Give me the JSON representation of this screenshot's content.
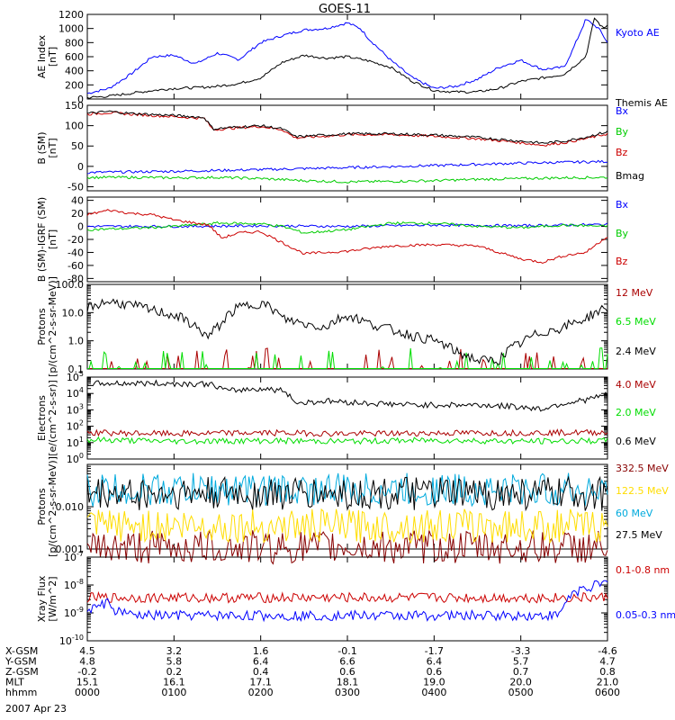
{
  "chart_data": {
    "type": "line",
    "title": "GOES-11",
    "date": "2007 Apr 23",
    "time_axis": {
      "rows": [
        {
          "label": "X-GSM",
          "values": [
            "4.5",
            "3.2",
            "1.6",
            "-0.1",
            "-1.7",
            "-3.3",
            "-4.6"
          ]
        },
        {
          "label": "Y-GSM",
          "values": [
            "4.8",
            "5.8",
            "6.4",
            "6.6",
            "6.4",
            "5.7",
            "4.7"
          ]
        },
        {
          "label": "Z-GSM",
          "values": [
            "-0.2",
            "0.2",
            "0.4",
            "0.6",
            "0.6",
            "0.7",
            "0.8"
          ]
        },
        {
          "label": "MLT",
          "values": [
            "15.1",
            "16.1",
            "17.1",
            "18.1",
            "19.0",
            "20.0",
            "21.0"
          ]
        },
        {
          "label": "hhmm",
          "values": [
            "0000",
            "0100",
            "0200",
            "0300",
            "0400",
            "0500",
            "0600"
          ]
        }
      ],
      "range_hours": [
        0,
        6
      ]
    },
    "panels": [
      {
        "ylabel": [
          "AE Index",
          "[nT]"
        ],
        "scale": "linear",
        "ylim": [
          0,
          1200
        ],
        "ticks": [
          0,
          200,
          400,
          600,
          800,
          1000,
          1200
        ],
        "tick_labels": [
          "0",
          "200",
          "400",
          "600",
          "800",
          "1000",
          "1200"
        ],
        "series": [
          {
            "name": "Kyoto AE",
            "color": "#0000ff",
            "x": [
              0,
              0.25,
              0.5,
              0.75,
              1.0,
              1.25,
              1.5,
              1.75,
              2.0,
              2.25,
              2.5,
              2.75,
              3.0,
              3.15,
              3.25,
              3.5,
              3.75,
              4.0,
              4.25,
              4.5,
              4.75,
              5.0,
              5.25,
              5.5,
              5.6,
              5.75,
              5.9,
              6.0
            ],
            "y": [
              80,
              150,
              350,
              600,
              620,
              500,
              650,
              560,
              800,
              900,
              980,
              1000,
              1080,
              1000,
              850,
              550,
              300,
              150,
              180,
              280,
              450,
              550,
              420,
              450,
              700,
              1130,
              1000,
              800
            ]
          },
          {
            "name": "Themis AE",
            "color": "#000000",
            "x": [
              0,
              0.25,
              0.5,
              0.75,
              1.0,
              1.25,
              1.5,
              1.75,
              2.0,
              2.25,
              2.5,
              2.75,
              3.0,
              3.25,
              3.5,
              3.75,
              4.0,
              4.25,
              4.5,
              4.75,
              5.0,
              5.25,
              5.5,
              5.75,
              5.85,
              5.95,
              6.0
            ],
            "y": [
              20,
              40,
              80,
              120,
              150,
              160,
              180,
              220,
              300,
              520,
              620,
              580,
              600,
              540,
              450,
              250,
              120,
              100,
              100,
              150,
              250,
              300,
              350,
              600,
              1150,
              1000,
              1050
            ]
          }
        ]
      },
      {
        "ylabel": [
          "B (SM)",
          "[nT]"
        ],
        "scale": "linear",
        "ylim": [
          -60,
          150
        ],
        "ticks": [
          -50,
          0,
          50,
          100,
          150
        ],
        "tick_labels": [
          "-50",
          "0",
          "50",
          "100",
          "150"
        ],
        "series": [
          {
            "name": "Bx",
            "color": "#0000ff",
            "x": [
              0,
              1,
              2,
              3,
              4,
              5,
              6
            ],
            "y": [
              -15,
              -12,
              -8,
              -3,
              2,
              8,
              12
            ]
          },
          {
            "name": "By",
            "color": "#00cc00",
            "x": [
              0,
              0.5,
              1,
              1.5,
              2,
              2.5,
              3,
              3.5,
              4,
              4.5,
              5,
              5.5,
              6
            ],
            "y": [
              -27,
              -27,
              -28,
              -27,
              -30,
              -35,
              -38,
              -37,
              -35,
              -32,
              -30,
              -28,
              -27
            ]
          },
          {
            "name": "Bz",
            "color": "#cc0000",
            "x": [
              0,
              0.25,
              0.5,
              1.0,
              1.35,
              1.45,
              1.75,
              2.0,
              2.25,
              2.4,
              2.75,
              3.0,
              3.5,
              4.0,
              4.5,
              5.0,
              5.25,
              5.5,
              5.75,
              6.0
            ],
            "y": [
              128,
              132,
              128,
              122,
              118,
              90,
              95,
              98,
              90,
              70,
              74,
              78,
              78,
              74,
              68,
              58,
              52,
              58,
              68,
              80
            ]
          },
          {
            "name": "Bmag",
            "color": "#000000",
            "x": [
              0,
              0.25,
              0.5,
              1.0,
              1.35,
              1.45,
              1.75,
              2.0,
              2.25,
              2.4,
              2.75,
              3.0,
              3.5,
              4.0,
              4.5,
              5.0,
              5.25,
              5.5,
              5.75,
              6.0
            ],
            "y": [
              130,
              135,
              130,
              125,
              120,
              92,
              97,
              100,
              92,
              73,
              77,
              80,
              80,
              77,
              71,
              62,
              57,
              62,
              72,
              85
            ]
          }
        ]
      },
      {
        "ylabel": [
          "B (SM)-IGRF (SM)",
          "[nT]"
        ],
        "scale": "linear",
        "ylim": [
          -85,
          45
        ],
        "ticks": [
          -80,
          -60,
          -40,
          -20,
          0,
          20,
          40
        ],
        "tick_labels": [
          "-80",
          "-60",
          "-40",
          "-20",
          "0",
          "20",
          "40"
        ],
        "series": [
          {
            "name": "Bx",
            "color": "#0000ff",
            "x": [
              0,
              1,
              2,
              3,
              4,
              5,
              6
            ],
            "y": [
              0,
              0,
              1,
              0,
              2,
              1,
              3
            ]
          },
          {
            "name": "By",
            "color": "#00cc00",
            "x": [
              0,
              0.5,
              1,
              1.5,
              2,
              2.25,
              2.5,
              3,
              3.5,
              4,
              4.5,
              5,
              5.5,
              6
            ],
            "y": [
              -5,
              -3,
              0,
              5,
              4,
              0,
              -10,
              -5,
              5,
              5,
              0,
              -2,
              2,
              0
            ]
          },
          {
            "name": "Bz",
            "color": "#cc0000",
            "x": [
              0,
              0.25,
              0.5,
              0.75,
              1.0,
              1.4,
              1.55,
              1.75,
              2.0,
              2.25,
              2.5,
              2.75,
              3.0,
              3.5,
              4.0,
              4.5,
              5.0,
              5.25,
              5.5,
              5.75,
              6.0
            ],
            "y": [
              18,
              25,
              20,
              18,
              10,
              2,
              -18,
              -10,
              -8,
              -25,
              -42,
              -40,
              -38,
              -30,
              -28,
              -30,
              -50,
              -55,
              -45,
              -40,
              -15
            ]
          }
        ]
      },
      {
        "ylabel": [
          "Protons",
          "[p/(cm^2-s-sr-MeV)]"
        ],
        "scale": "log",
        "ylim_exp": [
          -1,
          2
        ],
        "tick_labels": [
          "0.1",
          "1.0",
          "10.0",
          "100.0"
        ],
        "series": [
          {
            "name": "12 MeV",
            "color": "#aa0000",
            "x": [],
            "y": []
          },
          {
            "name": "6.5 MeV",
            "color": "#00dd00",
            "x": [],
            "y": []
          },
          {
            "name": "2.4 MeV",
            "color": "#000000",
            "x": [
              0,
              0.25,
              0.5,
              0.75,
              1.0,
              1.25,
              1.4,
              1.55,
              1.75,
              2.0,
              2.25,
              2.5,
              2.75,
              3.0,
              3.25,
              3.5,
              3.75,
              4.0,
              4.25,
              4.5,
              4.75,
              5.0,
              5.25,
              5.5,
              5.75,
              6.0
            ],
            "y": [
              15,
              25,
              18,
              12,
              8,
              3,
              1.2,
              4,
              15,
              22,
              6,
              4,
              3,
              8,
              4,
              2.5,
              1.5,
              1,
              0.4,
              0.2,
              0.2,
              0.8,
              2,
              3,
              6,
              15
            ]
          }
        ]
      },
      {
        "ylabel": [
          "Electrons",
          "[e/(cm^2-s-sr)]"
        ],
        "scale": "log",
        "ylim_exp": [
          0,
          5
        ],
        "tick_labels": [
          "10^0",
          "10^1",
          "10^2",
          "10^3",
          "10^4",
          "10^5"
        ],
        "series": [
          {
            "name": "4.0 MeV",
            "color": "#aa0000",
            "x": [
              0,
              1,
              2,
              3,
              4,
              5,
              6
            ],
            "y": [
              40,
              35,
              40,
              35,
              38,
              40,
              42
            ]
          },
          {
            "name": "2.0 MeV",
            "color": "#00dd00",
            "x": [
              0,
              1,
              2,
              3,
              4,
              5,
              6
            ],
            "y": [
              15,
              12,
              13,
              12,
              14,
              12,
              13
            ]
          },
          {
            "name": "0.6 MeV",
            "color": "#000000",
            "x": [
              0,
              0.5,
              1.0,
              1.4,
              1.6,
              2.0,
              2.25,
              2.4,
              2.75,
              3.25,
              3.75,
              4.5,
              5.0,
              5.25,
              5.5,
              5.75,
              6.0
            ],
            "y": [
              40000,
              42000,
              40000,
              38000,
              14000,
              20000,
              15000,
              2500,
              3500,
              2500,
              2000,
              2000,
              1500,
              1100,
              2500,
              4000,
              8000
            ]
          }
        ]
      },
      {
        "ylabel": [
          "Protons",
          "[p/(cm^2-s-sr-MeV)]"
        ],
        "scale": "log",
        "ylim_exp": [
          -3,
          -1
        ],
        "tick_labels": [
          "0.001",
          "0.010"
        ],
        "series": [
          {
            "name": "332.5 MeV",
            "color": "#880000",
            "base": 0.0011
          },
          {
            "name": "122.5 MeV",
            "color": "#ffdd00",
            "base": 0.0035
          },
          {
            "name": "60 MeV",
            "color": "#00aadd",
            "base": 0.025
          },
          {
            "name": "27.5 MeV",
            "color": "#000000",
            "base": 0.02
          }
        ]
      },
      {
        "ylabel": [
          "Xray Flux",
          "[W/m^2]"
        ],
        "scale": "log",
        "ylim_exp": [
          -10,
          -7
        ],
        "tick_labels": [
          "10^-10",
          "10^-9",
          "10^-8",
          "10^-7"
        ],
        "series": [
          {
            "name": "0.1-0.8 nm",
            "color": "#cc0000",
            "x": [
              0,
              6
            ],
            "y": [
              3.5e-09,
              3.5e-09
            ]
          },
          {
            "name": "0.05-0.3 nm",
            "color": "#0000ff",
            "x": [
              0,
              0.05,
              0.15,
              0.25,
              0.3,
              0.45,
              0.5,
              0.6,
              1.0,
              2.0,
              3.0,
              4.0,
              5.0,
              5.45,
              5.5,
              5.6,
              5.75,
              5.9,
              6.0
            ],
            "y": [
              1.5e-09,
              1.4e-09,
              1.8e-09,
              2.5e-09,
              1.2e-09,
              1e-09,
              8e-10,
              8e-10,
              8e-10,
              8e-10,
              8e-10,
              8e-10,
              8e-10,
              8e-10,
              2e-09,
              5e-09,
              8e-09,
              1e-08,
              1.2e-08
            ]
          }
        ]
      }
    ]
  }
}
